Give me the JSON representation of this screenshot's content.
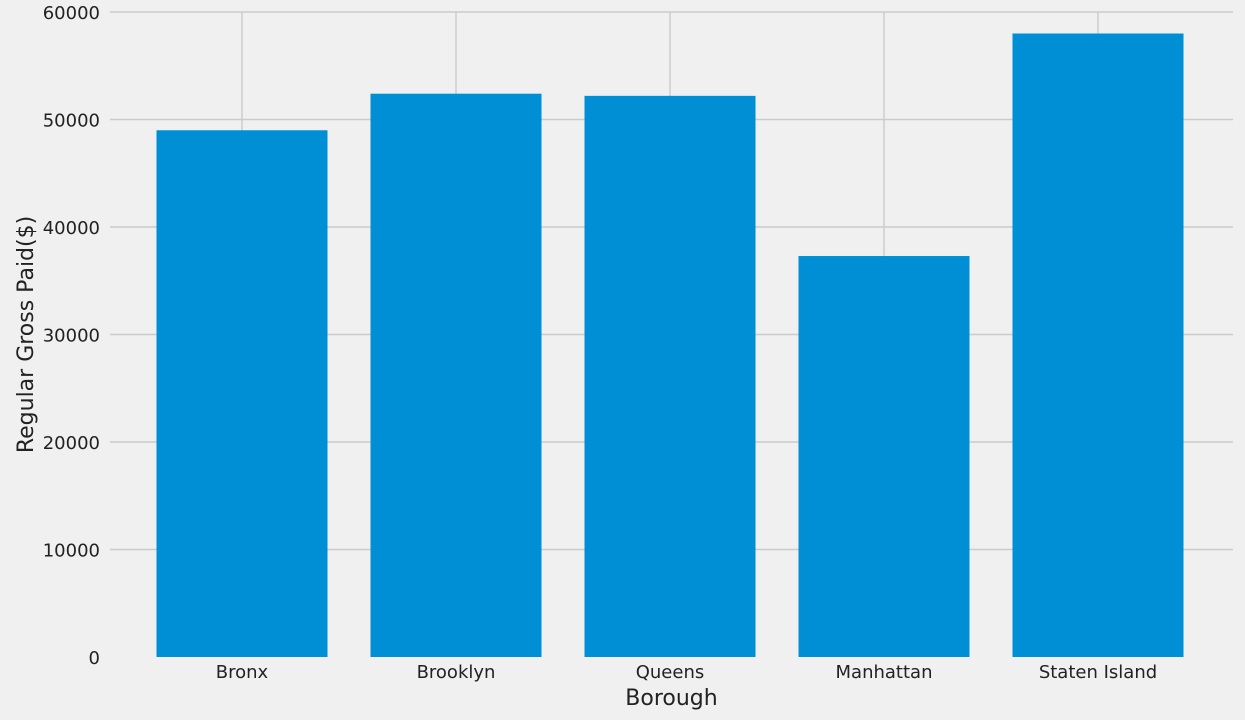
{
  "chart_data": {
    "type": "bar",
    "title": "",
    "xlabel": "Borough",
    "ylabel": "Regular Gross Paid($)",
    "categories": [
      "Bronx",
      "Brooklyn",
      "Queens",
      "Manhattan",
      "Staten Island"
    ],
    "values": [
      49000,
      52400,
      52200,
      37300,
      58000
    ],
    "ylim": [
      0,
      60000
    ],
    "yticks": [
      0,
      10000,
      20000,
      30000,
      40000,
      50000,
      60000
    ],
    "ytick_labels": [
      "0",
      "10000",
      "20000",
      "30000",
      "40000",
      "50000",
      "60000"
    ],
    "grid": true,
    "legend": "none",
    "colors": {
      "bar": "#008fd5",
      "background": "#f0f0f0",
      "grid": "#cbcbcb",
      "text": "#222222"
    }
  }
}
